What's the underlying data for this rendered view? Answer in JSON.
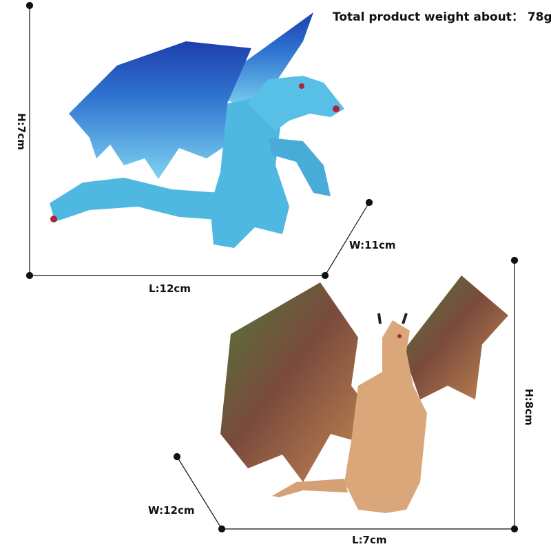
{
  "weight": {
    "label": "Total product weight about：",
    "value": "78g"
  },
  "blue_dragon": {
    "height": "H:7cm",
    "length": "L:12cm",
    "width": "W:11cm",
    "colors": {
      "body": "#4fb8e0",
      "wing": "#2f74d0",
      "wing_dark": "#1e3fae",
      "accent": "#b0213a"
    }
  },
  "brown_dragon": {
    "height": "H:8cm",
    "length": "L:7cm",
    "width": "W:12cm",
    "colors": {
      "body": "#d9a77a",
      "wing_edge": "#4f7a3a",
      "wing_mid": "#7a4a3c",
      "wing_inner": "#c88a55"
    }
  }
}
